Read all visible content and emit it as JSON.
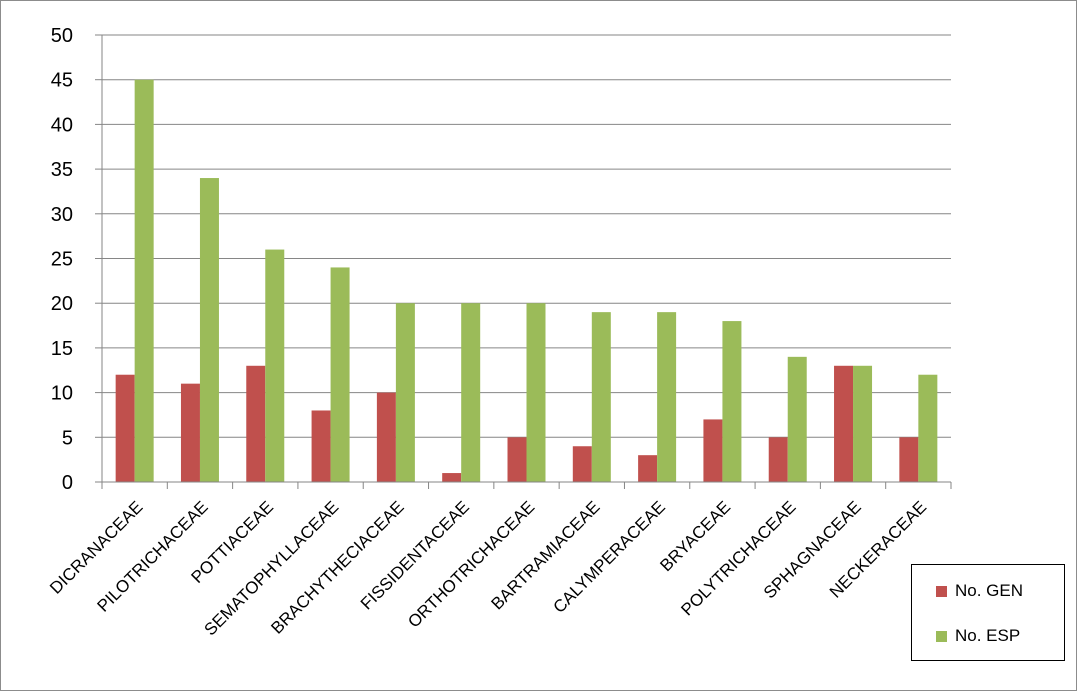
{
  "colors": {
    "gen": "#c0504d",
    "esp": "#9bbb59"
  },
  "chart_data": {
    "type": "bar",
    "categories": [
      "DICRANACEAE",
      "PILOTRICHACEAE",
      "POTTIACEAE",
      "SEMATOPHYLLACEAE",
      "BRACHYTHECIACEAE",
      "FISSIDENTACEAE",
      "ORTHOTRICHACEAE",
      "BARTRAMIACEAE",
      "CALYMPERACEAE",
      "BRYACEAE",
      "POLYTRICHACEAE",
      "SPHAGNACEAE",
      "NECKERACEAE"
    ],
    "series": [
      {
        "name": "No. GEN",
        "values": [
          12,
          11,
          13,
          8,
          10,
          1,
          5,
          4,
          3,
          7,
          5,
          13,
          5
        ]
      },
      {
        "name": "No. ESP",
        "values": [
          45,
          34,
          26,
          24,
          20,
          20,
          20,
          19,
          19,
          18,
          14,
          13,
          12
        ]
      }
    ],
    "ylim": [
      0,
      50
    ],
    "yticks": [
      0,
      5,
      10,
      15,
      20,
      25,
      30,
      35,
      40,
      45,
      50
    ],
    "grid": true,
    "legend_position": "bottom-right"
  }
}
